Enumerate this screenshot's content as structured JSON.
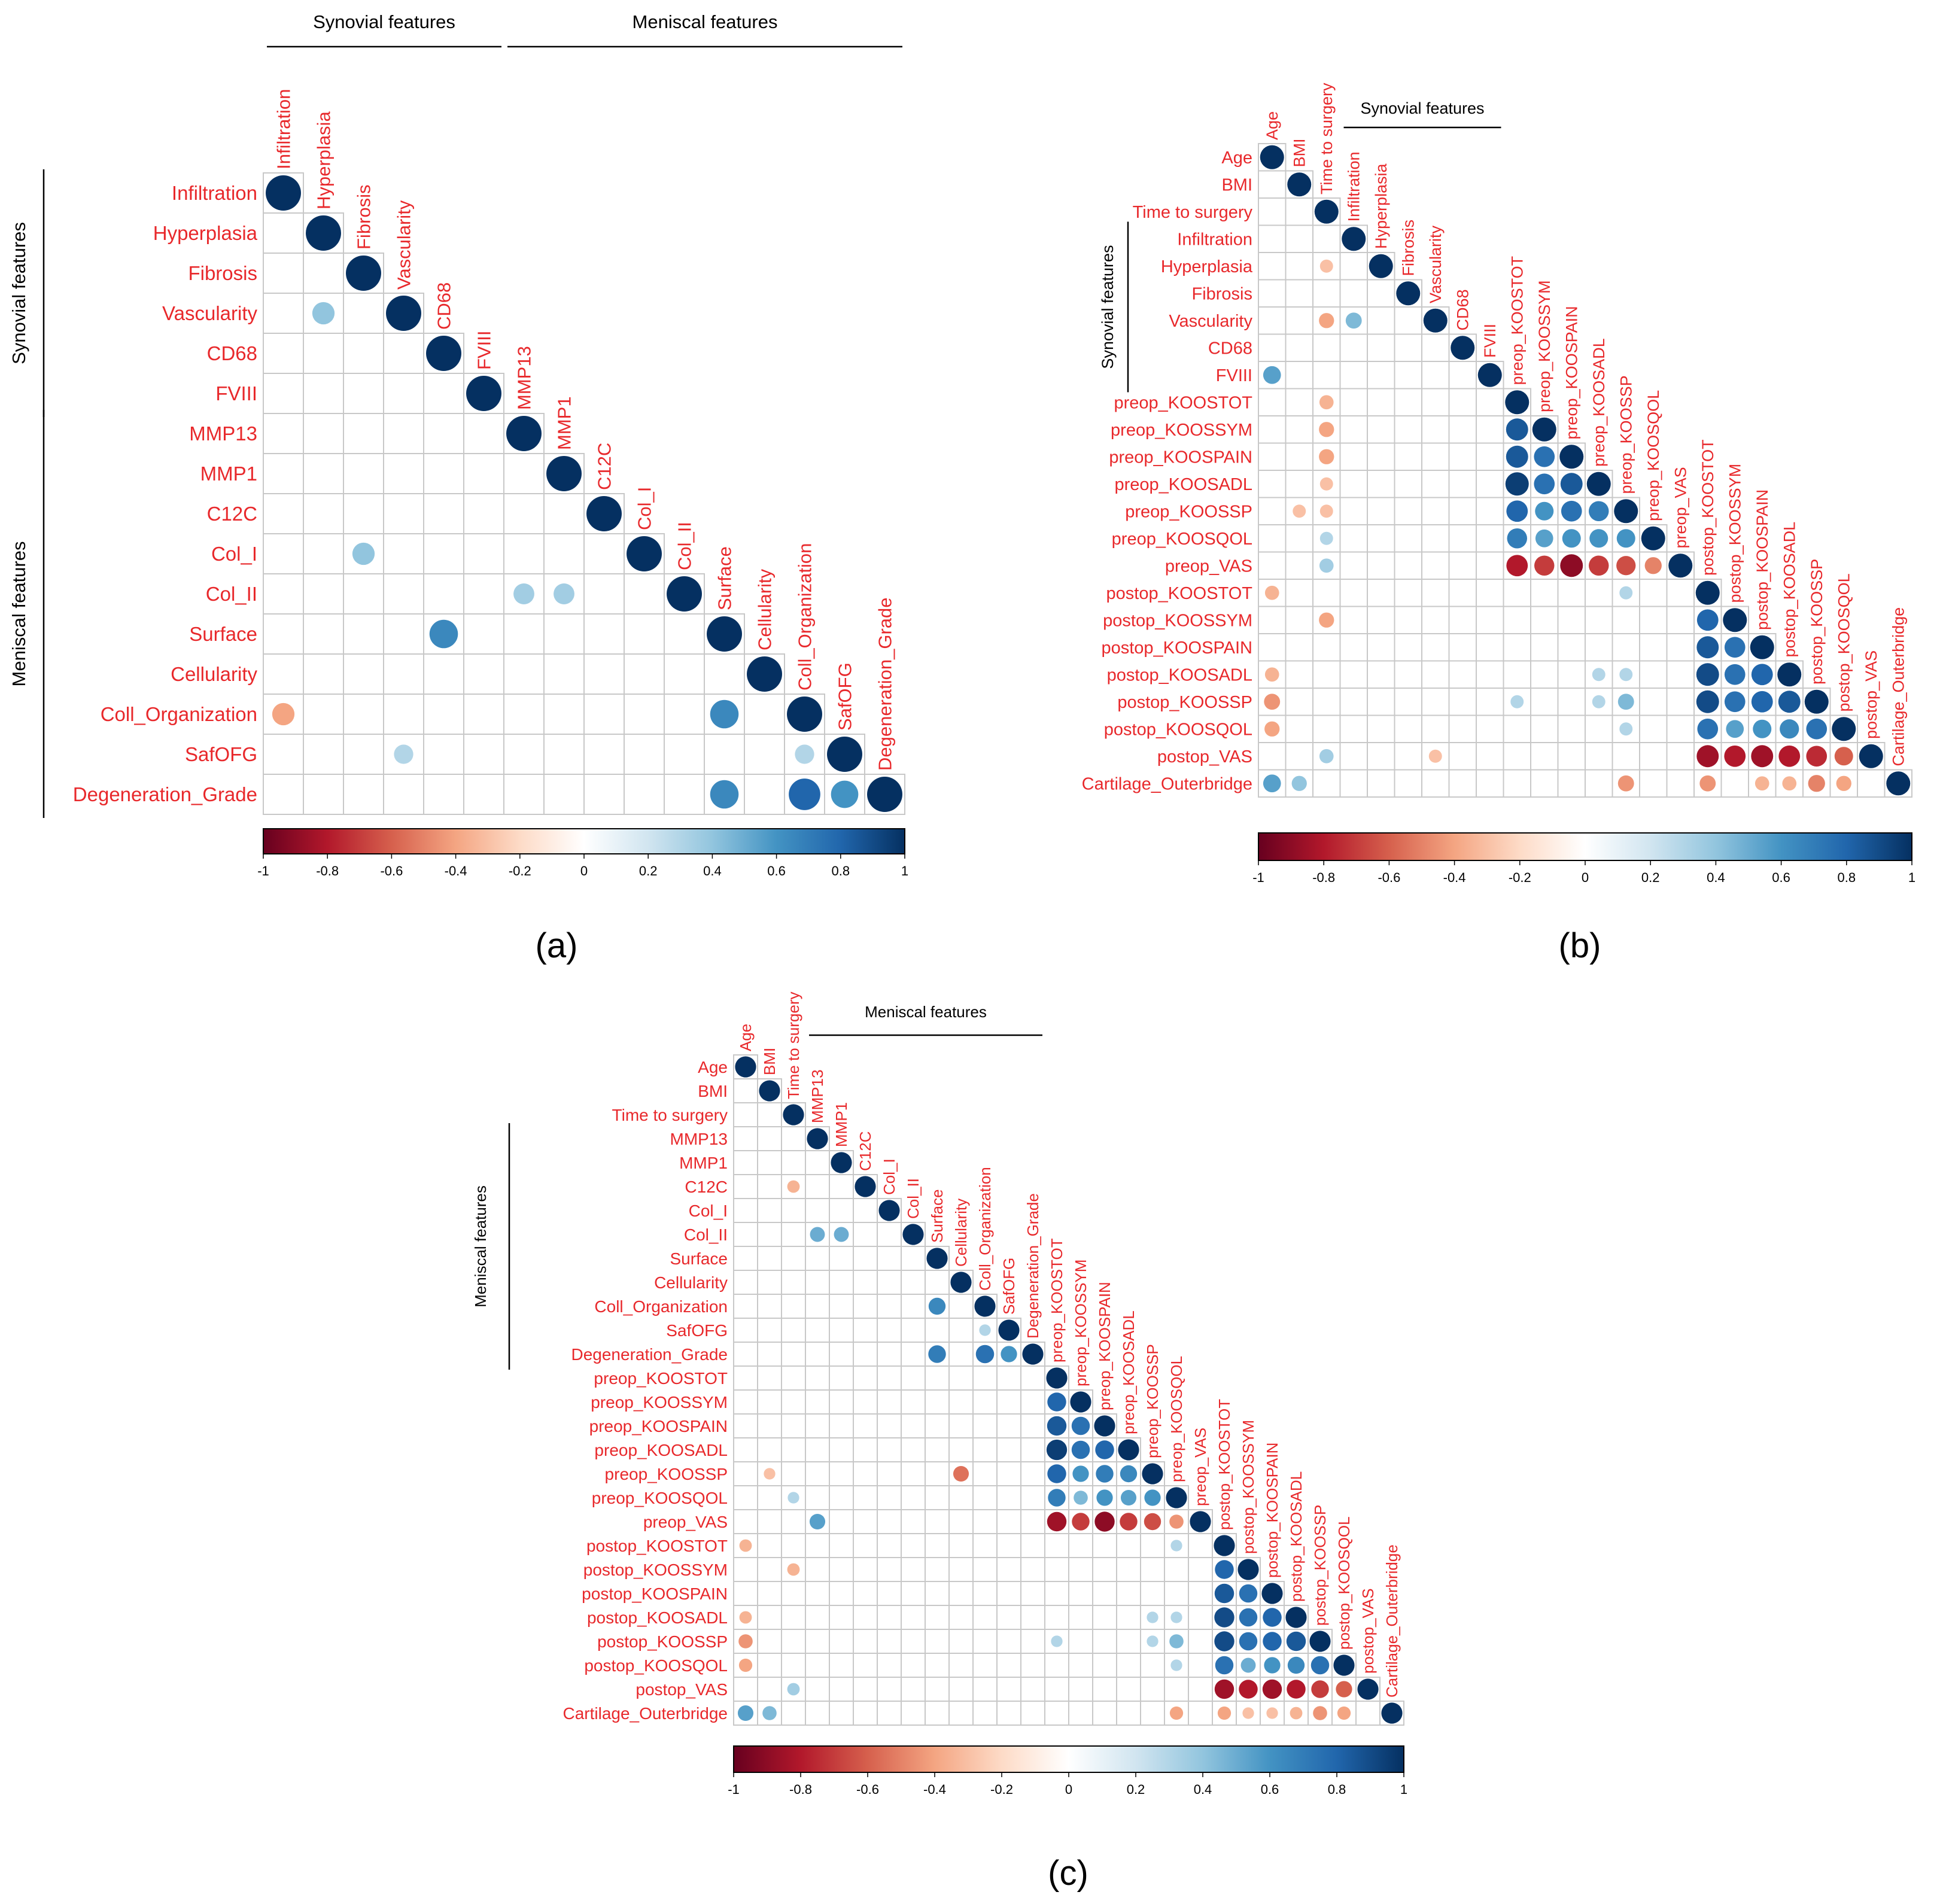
{
  "figure": {
    "panel_labels": [
      "(a)",
      "(b)",
      "(c)"
    ],
    "group_labels": {
      "synovial": "Synovial features",
      "meniscal": "Meniscal features"
    },
    "colorbar_ticks": [
      "-1",
      "-0.8",
      "-0.6",
      "-0.4",
      "-0.2",
      "0",
      "0.2",
      "0.4",
      "0.6",
      "0.8",
      "1"
    ],
    "colors": {
      "label_red": "#e8282b",
      "grid": "#c8c8c8",
      "neg_end": "#67001f",
      "pos_end": "#053061"
    }
  },
  "chart_data": [
    {
      "type": "heatmap",
      "panel": "(a)",
      "variables": [
        "Infiltration",
        "Hyperplasia",
        "Fibrosis",
        "Vascularity",
        "CD68",
        "FVIII",
        "MMP13",
        "MMP1",
        "C12C",
        "Col_I",
        "Col_II",
        "Surface",
        "Cellularity",
        "Coll_Organization",
        "SafOFG",
        "Degeneration_Grade"
      ],
      "groups": [
        {
          "name": "Synovial features",
          "from": "Infiltration",
          "to": "FVIII"
        },
        {
          "name": "Meniscal features",
          "from": "MMP13",
          "to": "Degeneration_Grade"
        }
      ],
      "top_groups": [
        {
          "name": "Synovial features",
          "from": "Infiltration",
          "to": "FVIII"
        },
        {
          "name": "Meniscal features",
          "from": "MMP13",
          "to": "Degeneration_Grade"
        }
      ],
      "correlations": [
        [
          "Vascularity",
          "Hyperplasia",
          0.4
        ],
        [
          "Col_I",
          "Fibrosis",
          0.4
        ],
        [
          "Col_II",
          "MMP13",
          0.35
        ],
        [
          "Col_II",
          "MMP1",
          0.35
        ],
        [
          "Surface",
          "CD68",
          0.65
        ],
        [
          "Coll_Organization",
          "Infiltration",
          -0.4
        ],
        [
          "Coll_Organization",
          "Surface",
          0.65
        ],
        [
          "SafOFG",
          "Vascularity",
          0.3
        ],
        [
          "SafOFG",
          "Coll_Organization",
          0.3
        ],
        [
          "Degeneration_Grade",
          "Surface",
          0.65
        ],
        [
          "Degeneration_Grade",
          "Coll_Organization",
          0.8
        ],
        [
          "Degeneration_Grade",
          "SafOFG",
          0.6
        ]
      ],
      "colorbar_range": [
        -1,
        1
      ]
    },
    {
      "type": "heatmap",
      "panel": "(b)",
      "variables": [
        "Age",
        "BMI",
        "Time to surgery",
        "Infiltration",
        "Hyperplasia",
        "Fibrosis",
        "Vascularity",
        "CD68",
        "FVIII",
        "preop_KOOSTOT",
        "preop_KOOSSYM",
        "preop_KOOSPAIN",
        "preop_KOOSADL",
        "preop_KOOSSP",
        "preop_KOOSQOL",
        "preop_VAS",
        "postop_KOOSTOT",
        "postop_KOOSSYM",
        "postop_KOOSPAIN",
        "postop_KOOSADL",
        "postop_KOOSSP",
        "postop_KOOSQOL",
        "postop_VAS",
        "Cartilage_Outerbridge"
      ],
      "groups": [
        {
          "name": "Synovial features",
          "from": "Infiltration",
          "to": "FVIII"
        }
      ],
      "top_groups": [
        {
          "name": "Synovial features",
          "from": "Infiltration",
          "to": "FVIII"
        }
      ],
      "correlations": [
        [
          "Hyperplasia",
          "Time to surgery",
          -0.3
        ],
        [
          "Vascularity",
          "Time to surgery",
          -0.4
        ],
        [
          "Vascularity",
          "Infiltration",
          0.45
        ],
        [
          "FVIII",
          "Age",
          0.55
        ],
        [
          "preop_KOOSTOT",
          "Time to surgery",
          -0.35
        ],
        [
          "preop_KOOSSYM",
          "Time to surgery",
          -0.4
        ],
        [
          "preop_KOOSSYM",
          "preop_KOOSTOT",
          0.85
        ],
        [
          "preop_KOOSPAIN",
          "Time to surgery",
          -0.4
        ],
        [
          "preop_KOOSPAIN",
          "preop_KOOSTOT",
          0.85
        ],
        [
          "preop_KOOSPAIN",
          "preop_KOOSSYM",
          0.75
        ],
        [
          "preop_KOOSADL",
          "Time to surgery",
          -0.3
        ],
        [
          "preop_KOOSADL",
          "preop_KOOSTOT",
          0.95
        ],
        [
          "preop_KOOSADL",
          "preop_KOOSSYM",
          0.75
        ],
        [
          "preop_KOOSADL",
          "preop_KOOSPAIN",
          0.85
        ],
        [
          "preop_KOOSSP",
          "BMI",
          -0.3
        ],
        [
          "preop_KOOSSP",
          "Time to surgery",
          -0.3
        ],
        [
          "preop_KOOSSP",
          "preop_KOOSTOT",
          0.8
        ],
        [
          "preop_KOOSSP",
          "preop_KOOSSYM",
          0.6
        ],
        [
          "preop_KOOSSP",
          "preop_KOOSPAIN",
          0.75
        ],
        [
          "preop_KOOSSP",
          "preop_KOOSADL",
          0.7
        ],
        [
          "preop_KOOSQOL",
          "Time to surgery",
          0.3
        ],
        [
          "preop_KOOSQOL",
          "preop_KOOSTOT",
          0.7
        ],
        [
          "preop_KOOSQOL",
          "preop_KOOSSYM",
          0.55
        ],
        [
          "preop_KOOSQOL",
          "preop_KOOSPAIN",
          0.6
        ],
        [
          "preop_KOOSQOL",
          "preop_KOOSADL",
          0.6
        ],
        [
          "preop_KOOSQOL",
          "preop_KOOSSP",
          0.6
        ],
        [
          "preop_VAS",
          "Time to surgery",
          0.35
        ],
        [
          "preop_VAS",
          "preop_KOOSTOT",
          -0.8
        ],
        [
          "preop_VAS",
          "preop_KOOSSYM",
          -0.7
        ],
        [
          "preop_VAS",
          "preop_KOOSPAIN",
          -0.9
        ],
        [
          "preop_VAS",
          "preop_KOOSADL",
          -0.7
        ],
        [
          "preop_VAS",
          "preop_KOOSSP",
          -0.65
        ],
        [
          "preop_VAS",
          "preop_KOOSQOL",
          -0.5
        ],
        [
          "postop_KOOSTOT",
          "Age",
          -0.35
        ],
        [
          "postop_KOOSTOT",
          "preop_KOOSSP",
          0.3
        ],
        [
          "postop_KOOSSYM",
          "Time to surgery",
          -0.4
        ],
        [
          "postop_KOOSSYM",
          "postop_KOOSTOT",
          0.8
        ],
        [
          "postop_KOOSPAIN",
          "postop_KOOSTOT",
          0.85
        ],
        [
          "postop_KOOSPAIN",
          "postop_KOOSSYM",
          0.75
        ],
        [
          "postop_KOOSADL",
          "Age",
          -0.35
        ],
        [
          "postop_KOOSADL",
          "preop_KOOSADL",
          0.3
        ],
        [
          "postop_KOOSADL",
          "preop_KOOSSP",
          0.3
        ],
        [
          "postop_KOOSADL",
          "postop_KOOSTOT",
          0.9
        ],
        [
          "postop_KOOSADL",
          "postop_KOOSSYM",
          0.75
        ],
        [
          "postop_KOOSADL",
          "postop_KOOSPAIN",
          0.8
        ],
        [
          "postop_KOOSSP",
          "Age",
          -0.45
        ],
        [
          "postop_KOOSSP",
          "preop_KOOSTOT",
          0.3
        ],
        [
          "postop_KOOSSP",
          "preop_KOOSADL",
          0.3
        ],
        [
          "postop_KOOSSP",
          "preop_KOOSSP",
          0.45
        ],
        [
          "postop_KOOSSP",
          "postop_KOOSTOT",
          0.9
        ],
        [
          "postop_KOOSSP",
          "postop_KOOSSYM",
          0.75
        ],
        [
          "postop_KOOSSP",
          "postop_KOOSPAIN",
          0.8
        ],
        [
          "postop_KOOSSP",
          "postop_KOOSADL",
          0.85
        ],
        [
          "postop_KOOSQOL",
          "Age",
          -0.4
        ],
        [
          "postop_KOOSQOL",
          "preop_KOOSSP",
          0.3
        ],
        [
          "postop_KOOSQOL",
          "postop_KOOSTOT",
          0.75
        ],
        [
          "postop_KOOSQOL",
          "postop_KOOSSYM",
          0.55
        ],
        [
          "postop_KOOSQOL",
          "postop_KOOSPAIN",
          0.6
        ],
        [
          "postop_KOOSQOL",
          "postop_KOOSADL",
          0.65
        ],
        [
          "postop_KOOSQOL",
          "postop_KOOSSP",
          0.75
        ],
        [
          "postop_VAS",
          "Time to surgery",
          0.35
        ],
        [
          "postop_VAS",
          "Vascularity",
          -0.3
        ],
        [
          "postop_VAS",
          "postop_KOOSTOT",
          -0.85
        ],
        [
          "postop_VAS",
          "postop_KOOSSYM",
          -0.8
        ],
        [
          "postop_VAS",
          "postop_KOOSPAIN",
          -0.85
        ],
        [
          "postop_VAS",
          "postop_KOOSADL",
          -0.8
        ],
        [
          "postop_VAS",
          "postop_KOOSSP",
          -0.75
        ],
        [
          "postop_VAS",
          "postop_KOOSQOL",
          -0.6
        ],
        [
          "Cartilage_Outerbridge",
          "Age",
          0.55
        ],
        [
          "Cartilage_Outerbridge",
          "BMI",
          0.4
        ],
        [
          "Cartilage_Outerbridge",
          "preop_KOOSSP",
          -0.45
        ],
        [
          "Cartilage_Outerbridge",
          "postop_KOOSTOT",
          -0.45
        ],
        [
          "Cartilage_Outerbridge",
          "postop_KOOSPAIN",
          -0.35
        ],
        [
          "Cartilage_Outerbridge",
          "postop_KOOSADL",
          -0.35
        ],
        [
          "Cartilage_Outerbridge",
          "postop_KOOSSP",
          -0.5
        ],
        [
          "Cartilage_Outerbridge",
          "postop_KOOSQOL",
          -0.4
        ]
      ],
      "colorbar_range": [
        -1,
        1
      ]
    },
    {
      "type": "heatmap",
      "panel": "(c)",
      "variables": [
        "Age",
        "BMI",
        "Time to surgery",
        "MMP13",
        "MMP1",
        "C12C",
        "Col_I",
        "Col_II",
        "Surface",
        "Cellularity",
        "Coll_Organization",
        "SafOFG",
        "Degeneration_Grade",
        "preop_KOOSTOT",
        "preop_KOOSSYM",
        "preop_KOOSPAIN",
        "preop_KOOSADL",
        "preop_KOOSSP",
        "preop_KOOSQOL",
        "preop_VAS",
        "postop_KOOSTOT",
        "postop_KOOSSYM",
        "postop_KOOSPAIN",
        "postop_KOOSADL",
        "postop_KOOSSP",
        "postop_KOOSQOL",
        "postop_VAS",
        "Cartilage_Outerbridge"
      ],
      "groups": [
        {
          "name": "Meniscal features",
          "from": "MMP13",
          "to": "Degeneration_Grade"
        }
      ],
      "top_groups": [
        {
          "name": "Meniscal features",
          "from": "MMP13",
          "to": "Degeneration_Grade"
        }
      ],
      "correlations": [
        [
          "C12C",
          "Time to surgery",
          -0.35
        ],
        [
          "Col_II",
          "MMP13",
          0.5
        ],
        [
          "Col_II",
          "MMP1",
          0.5
        ],
        [
          "Coll_Organization",
          "Surface",
          0.65
        ],
        [
          "SafOFG",
          "Coll_Organization",
          0.3
        ],
        [
          "Degeneration_Grade",
          "Surface",
          0.7
        ],
        [
          "Degeneration_Grade",
          "Coll_Organization",
          0.75
        ],
        [
          "Degeneration_Grade",
          "SafOFG",
          0.6
        ],
        [
          "preop_KOOSSYM",
          "preop_KOOSTOT",
          0.8
        ],
        [
          "preop_KOOSPAIN",
          "preop_KOOSTOT",
          0.85
        ],
        [
          "preop_KOOSPAIN",
          "preop_KOOSSYM",
          0.75
        ],
        [
          "preop_KOOSADL",
          "preop_KOOSTOT",
          0.95
        ],
        [
          "preop_KOOSADL",
          "preop_KOOSSYM",
          0.75
        ],
        [
          "preop_KOOSADL",
          "preop_KOOSPAIN",
          0.8
        ],
        [
          "preop_KOOSSP",
          "BMI",
          -0.3
        ],
        [
          "preop_KOOSSP",
          "Cellularity",
          -0.55
        ],
        [
          "preop_KOOSSP",
          "preop_KOOSTOT",
          0.8
        ],
        [
          "preop_KOOSSP",
          "preop_KOOSSYM",
          0.6
        ],
        [
          "preop_KOOSSP",
          "preop_KOOSPAIN",
          0.7
        ],
        [
          "preop_KOOSSP",
          "preop_KOOSADL",
          0.65
        ],
        [
          "preop_KOOSQOL",
          "Time to surgery",
          0.3
        ],
        [
          "preop_KOOSQOL",
          "preop_KOOSTOT",
          0.7
        ],
        [
          "preop_KOOSQOL",
          "preop_KOOSSYM",
          0.45
        ],
        [
          "preop_KOOSQOL",
          "preop_KOOSPAIN",
          0.6
        ],
        [
          "preop_KOOSQOL",
          "preop_KOOSADL",
          0.55
        ],
        [
          "preop_KOOSQOL",
          "preop_KOOSSP",
          0.6
        ],
        [
          "preop_VAS",
          "MMP13",
          0.55
        ],
        [
          "preop_VAS",
          "preop_KOOSTOT",
          -0.85
        ],
        [
          "preop_VAS",
          "preop_KOOSSYM",
          -0.7
        ],
        [
          "preop_VAS",
          "preop_KOOSPAIN",
          -0.9
        ],
        [
          "preop_VAS",
          "preop_KOOSADL",
          -0.7
        ],
        [
          "preop_VAS",
          "preop_KOOSSP",
          -0.65
        ],
        [
          "preop_VAS",
          "preop_KOOSQOL",
          -0.45
        ],
        [
          "postop_KOOSTOT",
          "Age",
          -0.35
        ],
        [
          "postop_KOOSTOT",
          "preop_KOOSQOL",
          0.3
        ],
        [
          "postop_KOOSSYM",
          "Time to surgery",
          -0.35
        ],
        [
          "postop_KOOSSYM",
          "postop_KOOSTOT",
          0.8
        ],
        [
          "postop_KOOSPAIN",
          "postop_KOOSTOT",
          0.85
        ],
        [
          "postop_KOOSPAIN",
          "postop_KOOSSYM",
          0.75
        ],
        [
          "postop_KOOSADL",
          "Age",
          -0.35
        ],
        [
          "postop_KOOSADL",
          "preop_KOOSSP",
          0.3
        ],
        [
          "postop_KOOSADL",
          "preop_KOOSQOL",
          0.3
        ],
        [
          "postop_KOOSADL",
          "postop_KOOSTOT",
          0.9
        ],
        [
          "postop_KOOSADL",
          "postop_KOOSSYM",
          0.75
        ],
        [
          "postop_KOOSADL",
          "postop_KOOSPAIN",
          0.8
        ],
        [
          "postop_KOOSSP",
          "Age",
          -0.45
        ],
        [
          "postop_KOOSSP",
          "preop_KOOSTOT",
          0.3
        ],
        [
          "postop_KOOSSP",
          "preop_KOOSSP",
          0.3
        ],
        [
          "postop_KOOSSP",
          "preop_KOOSQOL",
          0.45
        ],
        [
          "postop_KOOSSP",
          "postop_KOOSTOT",
          0.9
        ],
        [
          "postop_KOOSSP",
          "postop_KOOSSYM",
          0.75
        ],
        [
          "postop_KOOSSP",
          "postop_KOOSPAIN",
          0.8
        ],
        [
          "postop_KOOSSP",
          "postop_KOOSADL",
          0.85
        ],
        [
          "postop_KOOSQOL",
          "Age",
          -0.4
        ],
        [
          "postop_KOOSQOL",
          "preop_KOOSQOL",
          0.3
        ],
        [
          "postop_KOOSQOL",
          "postop_KOOSTOT",
          0.75
        ],
        [
          "postop_KOOSQOL",
          "postop_KOOSSYM",
          0.5
        ],
        [
          "postop_KOOSQOL",
          "postop_KOOSPAIN",
          0.6
        ],
        [
          "postop_KOOSQOL",
          "postop_KOOSADL",
          0.65
        ],
        [
          "postop_KOOSQOL",
          "postop_KOOSSP",
          0.75
        ],
        [
          "postop_VAS",
          "Time to surgery",
          0.35
        ],
        [
          "postop_VAS",
          "postop_KOOSTOT",
          -0.85
        ],
        [
          "postop_VAS",
          "postop_KOOSSYM",
          -0.8
        ],
        [
          "postop_VAS",
          "postop_KOOSPAIN",
          -0.85
        ],
        [
          "postop_VAS",
          "postop_KOOSADL",
          -0.8
        ],
        [
          "postop_VAS",
          "postop_KOOSSP",
          -0.7
        ],
        [
          "postop_VAS",
          "postop_KOOSQOL",
          -0.6
        ],
        [
          "Cartilage_Outerbridge",
          "Age",
          0.55
        ],
        [
          "Cartilage_Outerbridge",
          "BMI",
          0.45
        ],
        [
          "Cartilage_Outerbridge",
          "preop_KOOSQOL",
          -0.4
        ],
        [
          "Cartilage_Outerbridge",
          "postop_KOOSTOT",
          -0.4
        ],
        [
          "Cartilage_Outerbridge",
          "postop_KOOSSYM",
          -0.3
        ],
        [
          "Cartilage_Outerbridge",
          "postop_KOOSPAIN",
          -0.3
        ],
        [
          "Cartilage_Outerbridge",
          "postop_KOOSADL",
          -0.35
        ],
        [
          "Cartilage_Outerbridge",
          "postop_KOOSSP",
          -0.45
        ],
        [
          "Cartilage_Outerbridge",
          "postop_KOOSQOL",
          -0.4
        ]
      ],
      "colorbar_range": [
        -1,
        1
      ]
    }
  ]
}
